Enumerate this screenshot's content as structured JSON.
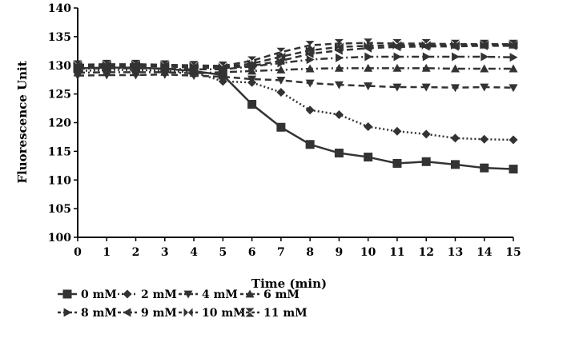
{
  "chart_data": {
    "type": "line",
    "title": "",
    "xlabel": "Time (min)",
    "ylabel": "Fluorescence Unit",
    "xlim": [
      0,
      15
    ],
    "ylim": [
      100,
      140
    ],
    "x_ticks": [
      0,
      1,
      2,
      3,
      4,
      5,
      6,
      7,
      8,
      9,
      10,
      11,
      12,
      13,
      14,
      15
    ],
    "y_ticks": [
      100,
      105,
      110,
      115,
      120,
      125,
      130,
      135,
      140
    ],
    "grid": false,
    "legend_position": "bottom",
    "x": [
      0,
      1,
      2,
      3,
      4,
      5,
      6,
      7,
      8,
      9,
      10,
      11,
      12,
      13,
      14,
      15
    ],
    "series": [
      {
        "name": "0 mM",
        "marker": "square",
        "dash": "solid",
        "values": [
          129.5,
          129.6,
          129.6,
          129.4,
          129.0,
          128.3,
          123.2,
          119.2,
          116.2,
          114.7,
          114.0,
          112.9,
          113.2,
          112.7,
          112.1,
          111.9
        ]
      },
      {
        "name": "2 mM",
        "marker": "diamond",
        "dash": "dotted",
        "values": [
          129.0,
          129.2,
          129.2,
          129.0,
          128.8,
          127.2,
          127.0,
          125.3,
          122.2,
          121.4,
          119.3,
          118.5,
          118.0,
          117.3,
          117.1,
          117.0
        ]
      },
      {
        "name": "4 mM",
        "marker": "triangle-down",
        "dash": "dashed",
        "values": [
          128.2,
          128.3,
          128.3,
          128.4,
          128.2,
          128.0,
          127.6,
          127.4,
          126.9,
          126.6,
          126.4,
          126.2,
          126.2,
          126.1,
          126.2,
          126.1
        ]
      },
      {
        "name": "6 mM",
        "marker": "triangle-up",
        "dash": "dashdot",
        "values": [
          128.7,
          128.8,
          128.8,
          128.8,
          128.6,
          128.8,
          129.0,
          129.2,
          129.4,
          129.5,
          129.5,
          129.5,
          129.5,
          129.4,
          129.4,
          129.4
        ]
      },
      {
        "name": "8 mM",
        "marker": "triangle-right",
        "dash": "dashdot",
        "values": [
          129.4,
          129.5,
          129.5,
          129.4,
          129.3,
          129.3,
          129.8,
          130.4,
          131.0,
          131.3,
          131.5,
          131.5,
          131.5,
          131.5,
          131.5,
          131.4
        ]
      },
      {
        "name": "9 mM",
        "marker": "triangle-left",
        "dash": "dashed",
        "values": [
          129.8,
          129.9,
          129.9,
          129.8,
          129.6,
          129.5,
          129.9,
          130.8,
          132.0,
          132.6,
          133.0,
          133.2,
          133.3,
          133.3,
          133.4,
          133.4
        ]
      },
      {
        "name": "10 mM",
        "marker": "double-arrow",
        "dash": "dashed",
        "values": [
          130.0,
          130.1,
          130.1,
          130.0,
          129.9,
          129.7,
          130.3,
          131.5,
          132.6,
          133.2,
          133.4,
          133.5,
          133.5,
          133.5,
          133.6,
          133.6
        ]
      },
      {
        "name": "11 mM",
        "marker": "hourglass",
        "dash": "dashed",
        "values": [
          130.1,
          130.2,
          130.2,
          130.1,
          130.0,
          129.9,
          130.8,
          132.3,
          133.5,
          133.8,
          133.9,
          133.8,
          133.8,
          133.7,
          133.7,
          133.7
        ]
      }
    ]
  }
}
